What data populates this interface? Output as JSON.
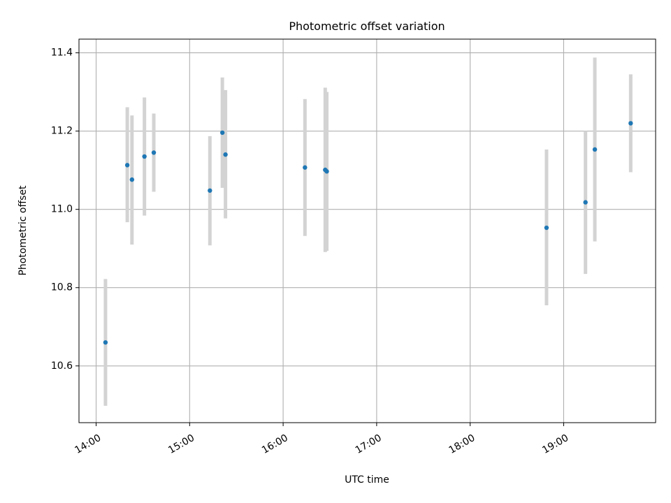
{
  "chart_data": {
    "type": "scatter",
    "title": "Photometric offset variation",
    "xlabel": "UTC time",
    "ylabel": "Photometric offset",
    "x_tick_labels": [
      "14:00",
      "15:00",
      "16:00",
      "17:00",
      "18:00",
      "19:00"
    ],
    "y_tick_labels": [
      "10.6",
      "10.8",
      "11.0",
      "11.2",
      "11.4"
    ],
    "x_ticks": [
      "14:00",
      "15:00",
      "16:00",
      "17:00",
      "18:00",
      "19:00"
    ],
    "y_ticks": [
      10.6,
      10.8,
      11.0,
      11.2,
      11.4
    ],
    "xlim": [
      "13:49",
      "19:59"
    ],
    "ylim": [
      10.455,
      11.435
    ],
    "grid": true,
    "point_color": "#1f77b4",
    "errorbar_color": "#d3d3d3",
    "points": [
      {
        "x": "14:06",
        "y": 10.66,
        "y_low": 10.498,
        "y_high": 10.822
      },
      {
        "x": "14:20",
        "y": 11.113,
        "y_low": 10.967,
        "y_high": 11.261
      },
      {
        "x": "14:23",
        "y": 11.076,
        "y_low": 10.91,
        "y_high": 11.24
      },
      {
        "x": "14:31",
        "y": 11.135,
        "y_low": 10.984,
        "y_high": 11.286
      },
      {
        "x": "14:37",
        "y": 11.145,
        "y_low": 11.045,
        "y_high": 11.245
      },
      {
        "x": "15:13",
        "y": 11.048,
        "y_low": 10.908,
        "y_high": 11.187
      },
      {
        "x": "15:21",
        "y": 11.196,
        "y_low": 11.055,
        "y_high": 11.337
      },
      {
        "x": "15:23",
        "y": 11.14,
        "y_low": 10.977,
        "y_high": 11.305
      },
      {
        "x": "16:14",
        "y": 11.107,
        "y_low": 10.932,
        "y_high": 11.282
      },
      {
        "x": "16:27",
        "y": 11.101,
        "y_low": 10.891,
        "y_high": 11.311
      },
      {
        "x": "16:28",
        "y": 11.097,
        "y_low": 10.894,
        "y_high": 11.3
      },
      {
        "x": "18:49",
        "y": 10.953,
        "y_low": 10.755,
        "y_high": 11.153
      },
      {
        "x": "19:14",
        "y": 11.018,
        "y_low": 10.835,
        "y_high": 11.2
      },
      {
        "x": "19:20",
        "y": 11.153,
        "y_low": 10.918,
        "y_high": 11.388
      },
      {
        "x": "19:43",
        "y": 11.22,
        "y_low": 11.095,
        "y_high": 11.345
      }
    ]
  }
}
